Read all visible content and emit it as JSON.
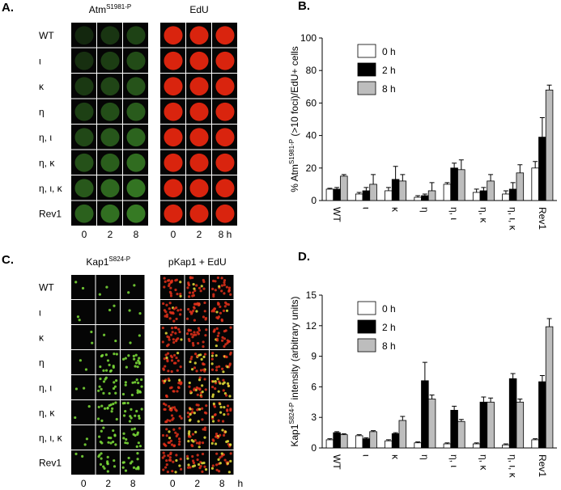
{
  "panels": {
    "a": {
      "label": "A.",
      "stain1": [
        "Atm",
        "S1981-P"
      ],
      "stain2": "EdU",
      "rows": [
        "WT",
        "ι",
        "κ",
        "η",
        "η, ι",
        "η, κ",
        "η, ι, κ",
        "Rev1"
      ],
      "columns": [
        "0",
        "2",
        "8"
      ],
      "columns2": [
        "0",
        "2",
        "8 h"
      ]
    },
    "c": {
      "label": "C.",
      "stain1": [
        "Kap1",
        "S824-P"
      ],
      "stain2": "pKap1 + EdU",
      "rows": [
        "WT",
        "ι",
        "κ",
        "η",
        "η, ι",
        "η, κ",
        "η, ι, κ",
        "Rev1"
      ],
      "columns": [
        "0",
        "2",
        "8"
      ],
      "columns2": [
        "0",
        "2",
        "8"
      ],
      "unit": "h"
    }
  },
  "chart_data": [
    {
      "type": "bar",
      "panel_label": "B.",
      "ylabel": [
        "% Atm",
        "S1981-P",
        " (>10 foci)/EdU+ cells"
      ],
      "categories": [
        "WT",
        "ι",
        "κ",
        "η",
        "η, ι",
        "η, κ",
        "η, ι, κ",
        "Rev1"
      ],
      "series": [
        {
          "name": "0 h",
          "color": "#ffffff",
          "values": [
            7,
            4,
            6,
            2,
            10,
            5,
            4,
            20
          ],
          "errors": [
            0.5,
            1,
            2,
            1,
            1,
            2,
            2,
            4
          ]
        },
        {
          "name": "2 h",
          "color": "#000000",
          "values": [
            7,
            6,
            13,
            3,
            20,
            6,
            7,
            39
          ],
          "errors": [
            1,
            2,
            8,
            1,
            3,
            2,
            4,
            12
          ]
        },
        {
          "name": "8 h",
          "color": "#bdbdbd",
          "values": [
            15,
            10,
            12,
            6,
            19,
            12,
            17,
            68
          ],
          "errors": [
            1,
            6,
            4,
            5,
            6,
            4,
            5,
            3
          ]
        }
      ],
      "ylim": [
        0,
        100
      ],
      "yticks": [
        0,
        20,
        40,
        60,
        80,
        100
      ]
    },
    {
      "type": "bar",
      "panel_label": "D.",
      "ylabel": [
        "Kap1",
        "S824-P",
        " intensity (arbitrary units)"
      ],
      "categories": [
        "WT",
        "ι",
        "κ",
        "η",
        "η, ι",
        "η, κ",
        "η, ι, κ",
        "Rev1"
      ],
      "series": [
        {
          "name": "0 h",
          "color": "#ffffff",
          "values": [
            0.8,
            1.2,
            0.7,
            0.5,
            0.4,
            0.4,
            0.3,
            0.8
          ],
          "errors": [
            0.1,
            0.1,
            0.1,
            0.1,
            0.1,
            0.1,
            0.1,
            0.1
          ]
        },
        {
          "name": "2 h",
          "color": "#000000",
          "values": [
            1.5,
            0.9,
            1.4,
            6.6,
            3.7,
            4.5,
            6.8,
            6.5
          ],
          "errors": [
            0.1,
            0.1,
            0.1,
            1.8,
            0.4,
            0.5,
            0.5,
            0.6
          ]
        },
        {
          "name": "8 h",
          "color": "#bdbdbd",
          "values": [
            1.3,
            1.6,
            2.7,
            4.8,
            2.6,
            4.5,
            4.5,
            11.9
          ],
          "errors": [
            0.1,
            0.1,
            0.4,
            0.4,
            0.2,
            0.4,
            0.3,
            0.8
          ]
        }
      ],
      "ylim": [
        0,
        15
      ],
      "yticks": [
        0,
        3,
        6,
        9,
        12,
        15
      ]
    }
  ]
}
